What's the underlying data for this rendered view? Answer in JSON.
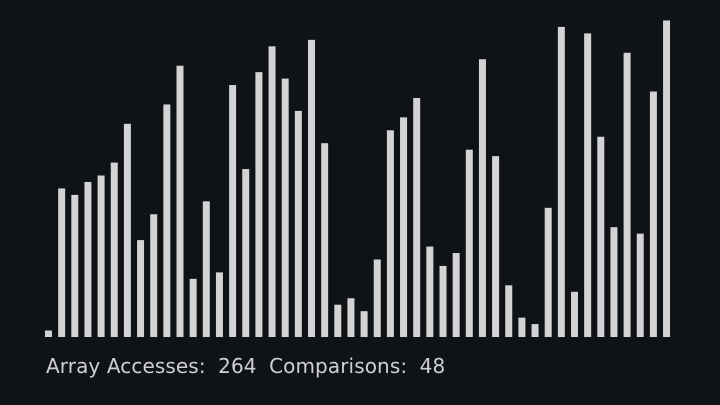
{
  "background_color": "#0f1217",
  "bar_color": "#d3d3d3",
  "text_color": "#d0d0d0",
  "array": {
    "max_value": 50,
    "values": [
      1,
      23,
      22,
      24,
      25,
      27,
      33,
      15,
      19,
      36,
      42,
      9,
      21,
      10,
      39,
      26,
      41,
      45,
      40,
      35,
      46,
      30,
      5,
      6,
      4,
      12,
      32,
      34,
      37,
      14,
      11,
      13,
      29,
      43,
      28,
      8,
      3,
      2,
      20,
      48,
      7,
      47,
      31,
      17,
      44,
      16,
      38,
      49
    ]
  },
  "stats": {
    "accesses_label": "Array Accesses:",
    "accesses_value": "264",
    "comparisons_label": "Comparisons:",
    "comparisons_value": "48"
  }
}
